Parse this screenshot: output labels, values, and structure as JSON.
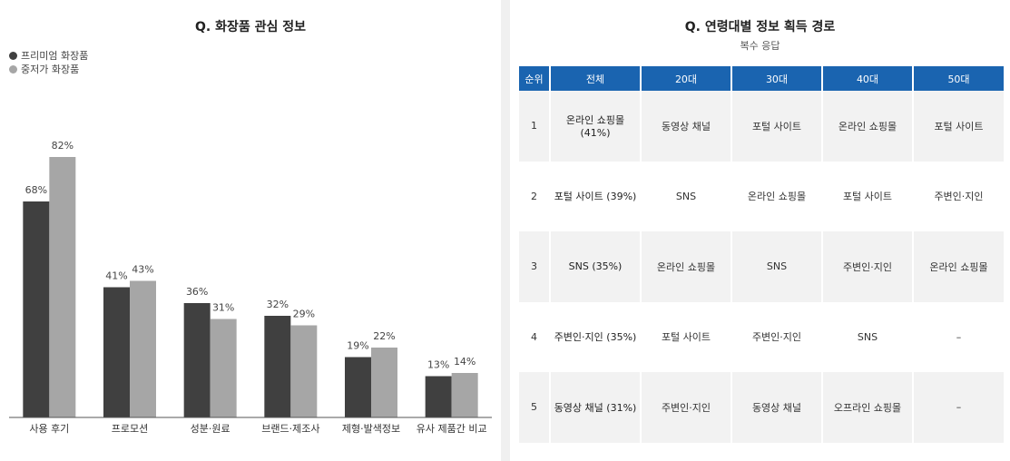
{
  "left_panel": {
    "title": "Q. 화장품 관심 정보",
    "legend": [
      {
        "label": "프리미엄 화장품",
        "color": "#404040"
      },
      {
        "label": "중저가 화장품",
        "color": "#a6a6a6"
      }
    ]
  },
  "chart_data": {
    "type": "bar",
    "title": "Q. 화장품 관심 정보",
    "categories": [
      "사용 후기",
      "프로모션",
      "성분·원료",
      "브랜드·제조사",
      "제형·발색정보",
      "유사 제품간 비교"
    ],
    "series": [
      {
        "name": "프리미엄 화장품",
        "color": "#404040",
        "values": [
          68,
          41,
          36,
          32,
          19,
          13
        ],
        "labels": [
          "68%",
          "41%",
          "36%",
          "32%",
          "19%",
          "13%"
        ]
      },
      {
        "name": "중저가 화장품",
        "color": "#a6a6a6",
        "values": [
          82,
          43,
          31,
          29,
          22,
          14
        ],
        "labels": [
          "82%",
          "43%",
          "31%",
          "29%",
          "22%",
          "14%"
        ]
      }
    ],
    "ylim": [
      0,
      100
    ],
    "grid": false,
    "legend_position": "top-left"
  },
  "right_panel": {
    "title": "Q. 연령대별 정보 획득 경로",
    "subtitle": "복수 응답",
    "headers": [
      "순위",
      "전체",
      "20대",
      "30대",
      "40대",
      "50대"
    ],
    "rows": [
      [
        "1",
        "온라인 쇼핑몰 (41%)",
        "동영상 채널",
        "포털 사이트",
        "온라인 쇼핑몰",
        "포털 사이트"
      ],
      [
        "2",
        "포털 사이트 (39%)",
        "SNS",
        "온라인 쇼핑몰",
        "포털 사이트",
        "주변인·지인"
      ],
      [
        "3",
        "SNS (35%)",
        "온라인 쇼핑몰",
        "SNS",
        "주변인·지인",
        "온라인 쇼핑몰"
      ],
      [
        "4",
        "주변인·지인 (35%)",
        "포털 사이트",
        "주변인·지인",
        "SNS",
        "–"
      ],
      [
        "5",
        "동영상 채널 (31%)",
        "주변인·지인",
        "동영상 채널",
        "오프라인 쇼핑몰",
        "–"
      ]
    ]
  }
}
